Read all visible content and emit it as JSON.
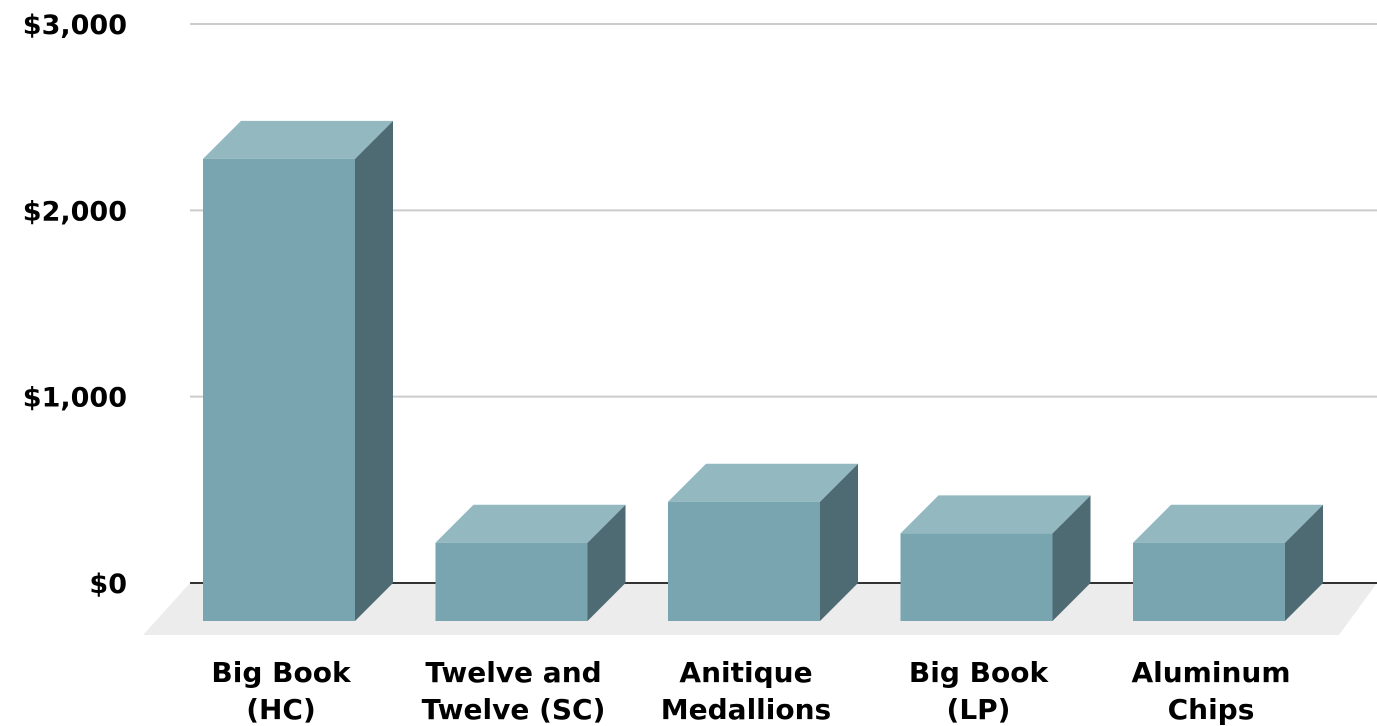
{
  "chart_data": {
    "type": "bar",
    "style": "3d",
    "categories": [
      [
        "Big Book",
        "(HC)"
      ],
      [
        "Twelve and",
        "Twelve (SC)"
      ],
      [
        "Anitique",
        "Medallions"
      ],
      [
        "Big Book",
        "(LP)"
      ],
      [
        "Aluminum",
        "Chips"
      ]
    ],
    "values": [
      2480,
      420,
      640,
      470,
      420
    ],
    "ylim": [
      0,
      3000
    ],
    "y_ticks": [
      0,
      1000,
      2000,
      3000
    ],
    "y_tick_labels": [
      "$0",
      "$1,000",
      "$2,000",
      "$3,000"
    ],
    "title": "",
    "xlabel": "",
    "ylabel": "",
    "grid": true,
    "legend": "none",
    "colors": {
      "bar_front": "#78a5b0",
      "bar_top": "#93b8c0",
      "bar_side": "#4e6b73",
      "gridline": "#cccccc",
      "floor": "#ececec",
      "baseline": "#333333"
    }
  }
}
